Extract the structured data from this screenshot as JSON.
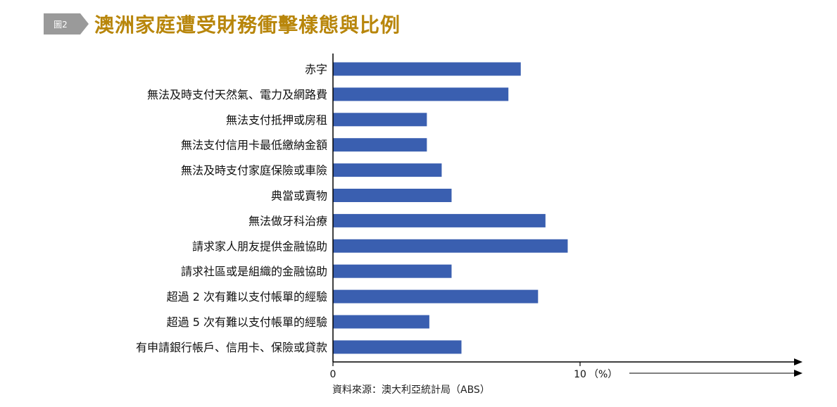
{
  "header": {
    "figure_label": "圖2",
    "title": "澳洲家庭遭受財務衝擊樣態與比例"
  },
  "source": "資料來源：澳大利亞統計局（ABS）",
  "colors": {
    "bar": "#3a5fb0",
    "title": "#b8860b",
    "tag": "#9a9a9a"
  },
  "chart_data": {
    "type": "bar",
    "orientation": "horizontal",
    "title": "澳洲家庭遭受財務衝擊樣態與比例",
    "xlabel": "（%）",
    "ylabel": "",
    "xlim": [
      0,
      18
    ],
    "xticks": [
      {
        "value": 0,
        "label": "0"
      },
      {
        "value": 10,
        "label": "10"
      }
    ],
    "categories": [
      "赤字",
      "無法及時支付天然氣、電力及網路費",
      "無法支付抵押或房租",
      "無法支付信用卡最低繳納金額",
      "無法及時支付家庭保險或車險",
      "典當或賣物",
      "無法做牙科治療",
      "請求家人朋友提供金融協助",
      "請求社區或是組織的金融協助",
      "超過 2 次有難以支付帳單的經驗",
      "超過 5 次有難以支付帳單的經驗",
      "有申請銀行帳戶、信用卡、保險或貸款"
    ],
    "values": [
      7.6,
      7.1,
      3.8,
      3.8,
      4.4,
      4.8,
      8.6,
      9.5,
      4.8,
      8.3,
      3.9,
      5.2
    ],
    "grid": false,
    "legend": "none"
  }
}
